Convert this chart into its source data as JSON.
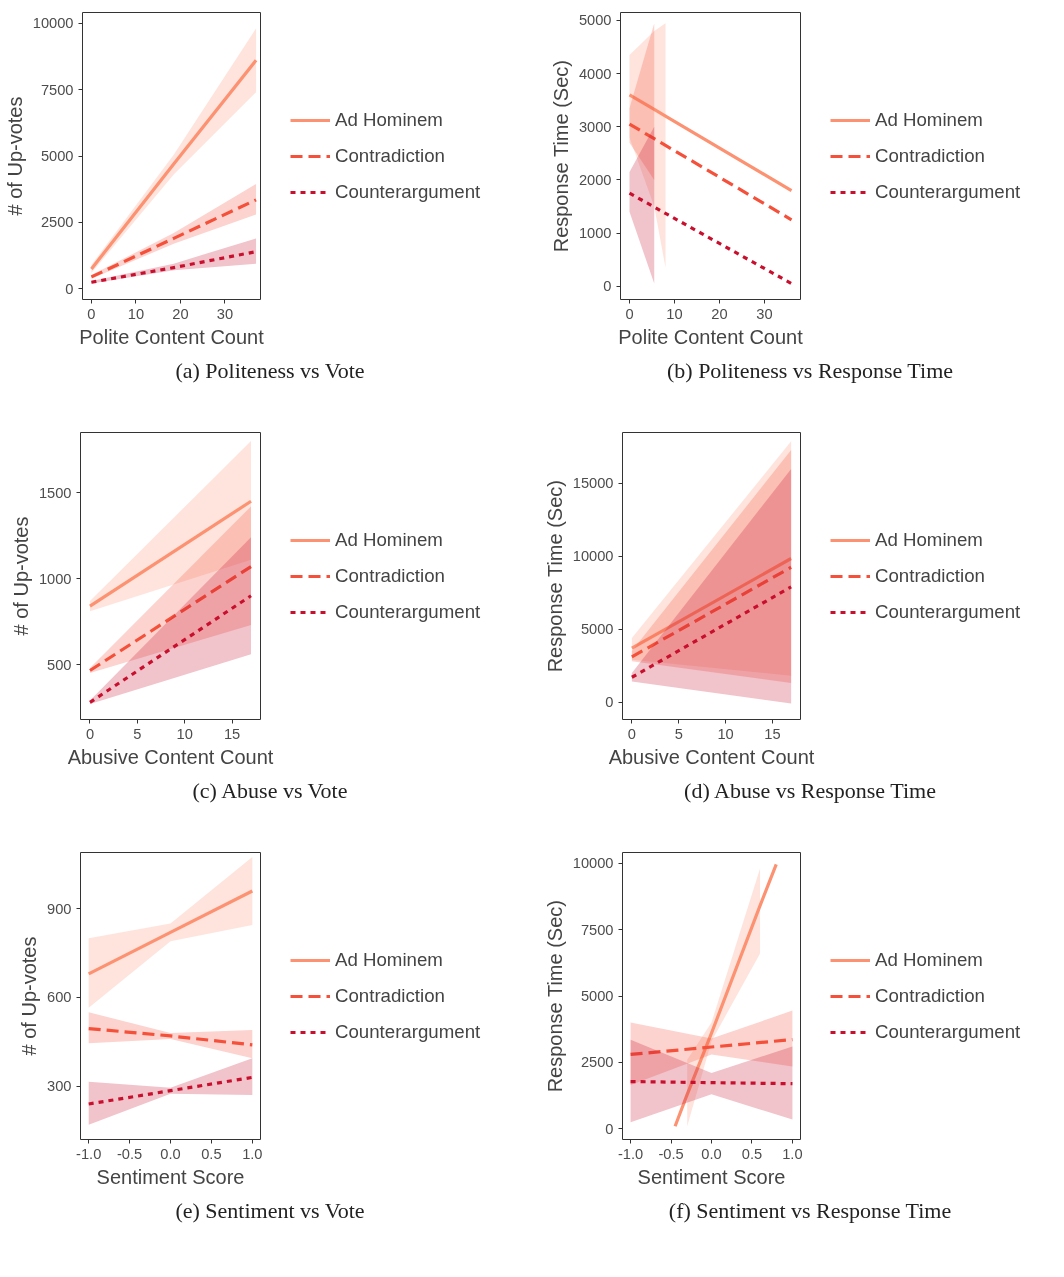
{
  "chart_data": [
    {
      "type": "line",
      "title": "(a) Politeness vs Vote",
      "xlabel": "Polite Content Count",
      "ylabel": "# of Up-votes",
      "xlim": [
        -2,
        38
      ],
      "xticks": [
        0,
        10,
        20,
        30
      ],
      "ylim": [
        -400,
        10400
      ],
      "yticks": [
        0,
        2500,
        5000,
        7500,
        10000
      ],
      "grid": false,
      "legend": "right",
      "series": [
        {
          "name": "Ad Hominem",
          "color": "#fc9272",
          "line_style": "solid",
          "x": [
            0,
            18.5,
            37
          ],
          "values": [
            750,
            4700,
            8600
          ],
          "lower": [
            600,
            4300,
            7400
          ],
          "upper": [
            900,
            5050,
            9800
          ]
        },
        {
          "name": "Contradiction",
          "color": "#f4503a",
          "line_style": "dashed",
          "x": [
            0,
            18.5,
            37
          ],
          "values": [
            450,
            1900,
            3350
          ],
          "lower": [
            380,
            1700,
            2800
          ],
          "upper": [
            520,
            2100,
            3950
          ]
        },
        {
          "name": "Counterargument",
          "color": "#c8102e",
          "line_style": "dotted",
          "x": [
            0,
            18.5,
            37
          ],
          "values": [
            250,
            800,
            1400
          ],
          "lower": [
            200,
            700,
            950
          ],
          "upper": [
            300,
            950,
            1900
          ]
        }
      ]
    },
    {
      "type": "line",
      "title": "(b) Politeness vs Response Time",
      "xlabel": "Polite Content Count",
      "ylabel": "Response Time (Sec)",
      "xlim": [
        -2,
        38
      ],
      "xticks": [
        0,
        10,
        20,
        30
      ],
      "ylim": [
        -250,
        5150
      ],
      "yticks": [
        0,
        1000,
        2000,
        3000,
        4000,
        5000
      ],
      "grid": false,
      "legend": "right",
      "series": [
        {
          "name": "Ad Hominem",
          "color": "#fc9272",
          "line_style": "solid",
          "x": [
            0,
            5.5,
            8,
            36
          ],
          "values": [
            3600,
            3325,
            3200,
            1800
          ],
          "lower": [
            2800,
            1500,
            350,
            null
          ],
          "upper": [
            4350,
            4800,
            4950,
            null
          ]
        },
        {
          "name": "Contradiction",
          "color": "#f4503a",
          "line_style": "dashed",
          "x": [
            0,
            5.5,
            8,
            36
          ],
          "values": [
            3050,
            2775,
            2650,
            1250
          ],
          "lower": [
            2700,
            2000,
            null,
            null
          ],
          "upper": [
            3350,
            4950,
            null,
            null
          ]
        },
        {
          "name": "Counterargument",
          "color": "#c8102e",
          "line_style": "dotted",
          "x": [
            0,
            5.5,
            8,
            36
          ],
          "values": [
            1750,
            1490,
            1370,
            50
          ],
          "lower": [
            1400,
            50,
            null,
            null
          ],
          "upper": [
            2150,
            3000,
            null,
            null
          ]
        }
      ]
    },
    {
      "type": "line",
      "title": "(c) Abuse vs Vote",
      "xlabel": "Abusive Content Count",
      "ylabel": "# of Up-votes",
      "xlim": [
        -1,
        18
      ],
      "xticks": [
        0,
        5,
        10,
        15
      ],
      "ylim": [
        180,
        1850
      ],
      "yticks": [
        500,
        1000,
        1500
      ],
      "grid": false,
      "legend": "right",
      "series": [
        {
          "name": "Ad Hominem",
          "color": "#fc9272",
          "line_style": "solid",
          "x": [
            0,
            17
          ],
          "values": [
            840,
            1450
          ],
          "lower": [
            810,
            1110
          ],
          "upper": [
            870,
            1800
          ]
        },
        {
          "name": "Contradiction",
          "color": "#f4503a",
          "line_style": "dashed",
          "x": [
            0,
            17
          ],
          "values": [
            465,
            1070
          ],
          "lower": [
            450,
            730
          ],
          "upper": [
            480,
            1420
          ]
        },
        {
          "name": "Counterargument",
          "color": "#c8102e",
          "line_style": "dotted",
          "x": [
            0,
            17
          ],
          "values": [
            280,
            900
          ],
          "lower": [
            270,
            560
          ],
          "upper": [
            290,
            1240
          ]
        }
      ]
    },
    {
      "type": "line",
      "title": "(d) Abuse vs Response Time",
      "xlabel": "Abusive Content Count",
      "ylabel": "Response Time (Sec)",
      "xlim": [
        -1,
        18
      ],
      "xticks": [
        0,
        5,
        10,
        15
      ],
      "ylim": [
        -1200,
        18500
      ],
      "yticks": [
        0,
        5000,
        10000,
        15000
      ],
      "grid": false,
      "legend": "right",
      "series": [
        {
          "name": "Ad Hominem",
          "color": "#fc9272",
          "line_style": "solid",
          "x": [
            0,
            17
          ],
          "values": [
            3700,
            9850
          ],
          "lower": [
            2900,
            1800
          ],
          "upper": [
            4400,
            17900
          ]
        },
        {
          "name": "Contradiction",
          "color": "#f4503a",
          "line_style": "dashed",
          "x": [
            0,
            17
          ],
          "values": [
            3100,
            9250
          ],
          "lower": [
            2800,
            1300
          ],
          "upper": [
            3500,
            17300
          ]
        },
        {
          "name": "Counterargument",
          "color": "#c8102e",
          "line_style": "dotted",
          "x": [
            0,
            17
          ],
          "values": [
            1700,
            7900
          ],
          "lower": [
            1400,
            -100
          ],
          "upper": [
            2000,
            16000
          ]
        }
      ]
    },
    {
      "type": "line",
      "title": "(e) Sentiment vs Vote",
      "xlabel": "Sentiment Score",
      "ylabel": "# of Up-votes",
      "xlim": [
        -1.1,
        1.1
      ],
      "xticks": [
        {
          "value": -1,
          "label": "-1.0"
        },
        -0.5,
        {
          "value": 0,
          "label": "0.0"
        },
        0.5,
        {
          "value": 1,
          "label": "1.0"
        }
      ],
      "ylim": [
        120,
        1090
      ],
      "yticks": [
        300,
        600,
        900
      ],
      "grid": false,
      "legend": "right",
      "series": [
        {
          "name": "Ad Hominem",
          "color": "#fc9272",
          "line_style": "solid",
          "x": [
            -1,
            0,
            1
          ],
          "values": [
            680,
            820,
            960
          ],
          "lower": [
            565,
            790,
            845
          ],
          "upper": [
            800,
            850,
            1075
          ]
        },
        {
          "name": "Contradiction",
          "color": "#f4503a",
          "line_style": "dashed",
          "x": [
            -1,
            0,
            1
          ],
          "values": [
            495,
            470,
            440
          ],
          "lower": [
            445,
            460,
            395
          ],
          "upper": [
            550,
            480,
            490
          ]
        },
        {
          "name": "Counterargument",
          "color": "#c8102e",
          "line_style": "dotted",
          "x": [
            -1,
            0,
            1
          ],
          "values": [
            240,
            285,
            330
          ],
          "lower": [
            170,
            275,
            270
          ],
          "upper": [
            315,
            295,
            395
          ]
        }
      ]
    },
    {
      "type": "line",
      "title": "(f) Sentiment vs Response Time",
      "xlabel": "Sentiment Score",
      "ylabel": "Response Time (Sec)",
      "xlim": [
        -1.1,
        1.1
      ],
      "xticks": [
        {
          "value": -1,
          "label": "-1.0"
        },
        -0.5,
        {
          "value": 0,
          "label": "0.0"
        },
        0.5,
        {
          "value": 1,
          "label": "1.0"
        }
      ],
      "ylim": [
        -400,
        10400
      ],
      "yticks": [
        0,
        2500,
        5000,
        7500,
        10000
      ],
      "grid": false,
      "legend": "right",
      "series": [
        {
          "name": "Ad Hominem",
          "color": "#fc9272",
          "line_style": "solid",
          "x": [
            -0.45,
            -0.3,
            0,
            0.6,
            0.8
          ],
          "values": [
            100,
            1300,
            3600,
            8400,
            9950
          ],
          "lower": [
            null,
            100,
            3300,
            6600,
            null
          ],
          "upper": [
            null,
            2600,
            4000,
            9800,
            null
          ]
        },
        {
          "name": "Contradiction",
          "color": "#f4503a",
          "line_style": "dashed",
          "x": [
            -1,
            0,
            1
          ],
          "values": [
            2800,
            3080,
            3360
          ],
          "lower": [
            1650,
            2800,
            2350
          ],
          "upper": [
            4000,
            3400,
            4450
          ]
        },
        {
          "name": "Counterargument",
          "color": "#c8102e",
          "line_style": "dotted",
          "x": [
            -1,
            0,
            1
          ],
          "values": [
            1780,
            1740,
            1700
          ],
          "lower": [
            250,
            1300,
            350
          ],
          "upper": [
            3350,
            2100,
            3100
          ]
        }
      ]
    }
  ]
}
